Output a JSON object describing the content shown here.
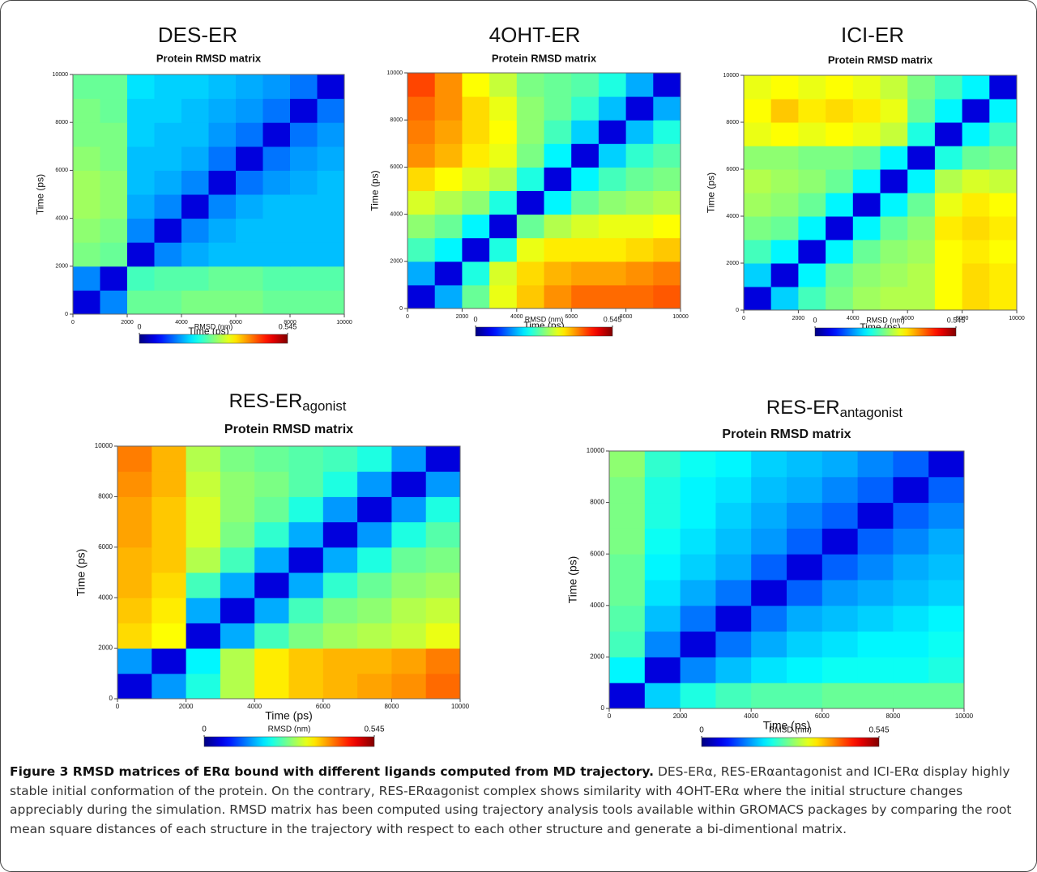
{
  "chart_data": [
    {
      "type": "heatmap",
      "heading": "DES-ER",
      "title": "Protein RMSD matrix",
      "xlabel": "Time (ps)",
      "ylabel": "Time (ps)",
      "xlim": [
        0,
        10000
      ],
      "ylim": [
        0,
        10000
      ],
      "xticks": [
        0,
        2000,
        4000,
        6000,
        8000,
        10000
      ],
      "yticks": [
        0,
        2000,
        4000,
        6000,
        8000,
        10000
      ],
      "xbins": [
        0,
        1000,
        2000,
        3000,
        4000,
        5000,
        6000,
        7000,
        8000,
        9000,
        10000
      ],
      "ybins": [
        0,
        1000,
        2000,
        3000,
        4000,
        5000,
        6000,
        7000,
        8000,
        9000,
        10000
      ],
      "colormap": "jet",
      "clim": [
        0,
        0.545
      ],
      "cticks": [
        0,
        0.545
      ],
      "clabel": "RMSD (nm)",
      "z": [
        [
          0.05,
          0.14,
          0.26,
          0.26,
          0.27,
          0.27,
          0.27,
          0.26,
          0.26,
          0.26
        ],
        [
          0.14,
          0.05,
          0.24,
          0.25,
          0.25,
          0.26,
          0.26,
          0.25,
          0.25,
          0.25
        ],
        [
          0.27,
          0.26,
          0.05,
          0.14,
          0.16,
          0.17,
          0.17,
          0.17,
          0.17,
          0.17
        ],
        [
          0.28,
          0.27,
          0.14,
          0.05,
          0.14,
          0.16,
          0.17,
          0.17,
          0.17,
          0.17
        ],
        [
          0.29,
          0.28,
          0.16,
          0.14,
          0.05,
          0.14,
          0.16,
          0.17,
          0.17,
          0.17
        ],
        [
          0.29,
          0.28,
          0.17,
          0.16,
          0.14,
          0.05,
          0.13,
          0.15,
          0.16,
          0.17
        ],
        [
          0.28,
          0.27,
          0.17,
          0.17,
          0.16,
          0.13,
          0.05,
          0.13,
          0.15,
          0.16
        ],
        [
          0.27,
          0.27,
          0.18,
          0.17,
          0.17,
          0.15,
          0.13,
          0.05,
          0.13,
          0.15
        ],
        [
          0.27,
          0.26,
          0.18,
          0.18,
          0.17,
          0.16,
          0.15,
          0.13,
          0.05,
          0.13
        ],
        [
          0.26,
          0.26,
          0.19,
          0.18,
          0.18,
          0.17,
          0.16,
          0.15,
          0.13,
          0.05
        ]
      ]
    },
    {
      "type": "heatmap",
      "heading": "4OHT-ER",
      "title": "Protein RMSD matrix",
      "xlabel": "Time (ps)",
      "ylabel": "Time (ps)",
      "xlim": [
        0,
        10000
      ],
      "ylim": [
        0,
        10000
      ],
      "xticks": [
        0,
        2000,
        4000,
        6000,
        8000,
        10000
      ],
      "yticks": [
        0,
        2000,
        4000,
        6000,
        8000,
        10000
      ],
      "xbins": [
        0,
        1000,
        2000,
        3000,
        4000,
        5000,
        6000,
        7000,
        8000,
        9000,
        10000
      ],
      "ybins": [
        0,
        1000,
        2000,
        3000,
        4000,
        5000,
        6000,
        7000,
        8000,
        9000,
        10000
      ],
      "colormap": "jet",
      "clim": [
        0,
        0.545
      ],
      "cticks": [
        0,
        0.545
      ],
      "clabel": "RMSD (nm)",
      "z": [
        [
          0.05,
          0.16,
          0.26,
          0.33,
          0.37,
          0.4,
          0.42,
          0.42,
          0.42,
          0.43
        ],
        [
          0.16,
          0.05,
          0.22,
          0.32,
          0.36,
          0.38,
          0.39,
          0.39,
          0.4,
          0.41
        ],
        [
          0.24,
          0.2,
          0.05,
          0.22,
          0.33,
          0.35,
          0.35,
          0.35,
          0.36,
          0.37
        ],
        [
          0.28,
          0.26,
          0.2,
          0.05,
          0.26,
          0.3,
          0.32,
          0.33,
          0.33,
          0.34
        ],
        [
          0.32,
          0.3,
          0.28,
          0.22,
          0.05,
          0.2,
          0.26,
          0.28,
          0.29,
          0.3
        ],
        [
          0.36,
          0.34,
          0.32,
          0.3,
          0.22,
          0.05,
          0.2,
          0.24,
          0.26,
          0.27
        ],
        [
          0.4,
          0.38,
          0.35,
          0.33,
          0.27,
          0.2,
          0.05,
          0.18,
          0.23,
          0.25
        ],
        [
          0.41,
          0.39,
          0.36,
          0.34,
          0.28,
          0.24,
          0.18,
          0.05,
          0.17,
          0.22
        ],
        [
          0.42,
          0.4,
          0.36,
          0.33,
          0.28,
          0.26,
          0.23,
          0.17,
          0.05,
          0.16
        ],
        [
          0.44,
          0.4,
          0.34,
          0.31,
          0.27,
          0.26,
          0.25,
          0.22,
          0.16,
          0.05
        ]
      ]
    },
    {
      "type": "heatmap",
      "heading": "ICI-ER",
      "title": "Protein RMSD matrix",
      "xlabel": "Time (ps)",
      "ylabel": "Time (ps)",
      "xlim": [
        0,
        10000
      ],
      "ylim": [
        0,
        10000
      ],
      "xticks": [
        0,
        2000,
        4000,
        6000,
        8000,
        10000
      ],
      "yticks": [
        0,
        2000,
        4000,
        6000,
        8000,
        10000
      ],
      "xbins": [
        0,
        1000,
        2000,
        3000,
        4000,
        5000,
        6000,
        7000,
        8000,
        9000,
        10000
      ],
      "ybins": [
        0,
        1000,
        2000,
        3000,
        4000,
        5000,
        6000,
        7000,
        8000,
        9000,
        10000
      ],
      "colormap": "jet",
      "clim": [
        0,
        0.545
      ],
      "cticks": [
        0,
        0.545
      ],
      "clabel": "RMSD (nm)",
      "z": [
        [
          0.05,
          0.18,
          0.24,
          0.27,
          0.29,
          0.3,
          0.3,
          0.34,
          0.36,
          0.35
        ],
        [
          0.18,
          0.05,
          0.2,
          0.26,
          0.28,
          0.29,
          0.3,
          0.34,
          0.36,
          0.35
        ],
        [
          0.24,
          0.2,
          0.05,
          0.2,
          0.26,
          0.28,
          0.29,
          0.34,
          0.35,
          0.34
        ],
        [
          0.27,
          0.26,
          0.2,
          0.05,
          0.2,
          0.26,
          0.28,
          0.35,
          0.36,
          0.35
        ],
        [
          0.29,
          0.28,
          0.26,
          0.2,
          0.05,
          0.2,
          0.26,
          0.33,
          0.35,
          0.34
        ],
        [
          0.3,
          0.29,
          0.28,
          0.26,
          0.2,
          0.05,
          0.2,
          0.3,
          0.32,
          0.31
        ],
        [
          0.28,
          0.28,
          0.27,
          0.27,
          0.26,
          0.2,
          0.05,
          0.22,
          0.26,
          0.27
        ],
        [
          0.33,
          0.34,
          0.33,
          0.34,
          0.33,
          0.31,
          0.22,
          0.05,
          0.2,
          0.24
        ],
        [
          0.34,
          0.37,
          0.35,
          0.36,
          0.35,
          0.33,
          0.26,
          0.2,
          0.05,
          0.2
        ],
        [
          0.33,
          0.34,
          0.33,
          0.34,
          0.33,
          0.31,
          0.27,
          0.24,
          0.2,
          0.05
        ]
      ]
    },
    {
      "type": "heatmap",
      "heading": "RES-ER",
      "heading_sub": "agonist",
      "title": "Protein RMSD matrix",
      "xlabel": "Time (ps)",
      "ylabel": "Time (ps)",
      "xlim": [
        0,
        10000
      ],
      "ylim": [
        0,
        10000
      ],
      "xticks": [
        0,
        2000,
        4000,
        6000,
        8000,
        10000
      ],
      "yticks": [
        0,
        2000,
        4000,
        6000,
        8000,
        10000
      ],
      "xbins": [
        0,
        1000,
        2000,
        3000,
        4000,
        5000,
        6000,
        7000,
        8000,
        9000,
        10000
      ],
      "ybins": [
        0,
        1000,
        2000,
        3000,
        4000,
        5000,
        6000,
        7000,
        8000,
        9000,
        10000
      ],
      "colormap": "jet",
      "clim": [
        0,
        0.545
      ],
      "cticks": [
        0,
        0.545
      ],
      "clabel": "RMSD (nm)",
      "z": [
        [
          0.05,
          0.15,
          0.22,
          0.3,
          0.35,
          0.37,
          0.38,
          0.39,
          0.4,
          0.42
        ],
        [
          0.15,
          0.05,
          0.2,
          0.3,
          0.35,
          0.37,
          0.38,
          0.38,
          0.39,
          0.41
        ],
        [
          0.36,
          0.34,
          0.05,
          0.16,
          0.24,
          0.27,
          0.29,
          0.3,
          0.31,
          0.33
        ],
        [
          0.37,
          0.35,
          0.16,
          0.05,
          0.16,
          0.24,
          0.27,
          0.28,
          0.3,
          0.31
        ],
        [
          0.38,
          0.36,
          0.24,
          0.16,
          0.05,
          0.16,
          0.23,
          0.26,
          0.28,
          0.29
        ],
        [
          0.38,
          0.37,
          0.3,
          0.24,
          0.16,
          0.05,
          0.16,
          0.22,
          0.26,
          0.27
        ],
        [
          0.39,
          0.37,
          0.32,
          0.27,
          0.23,
          0.16,
          0.05,
          0.15,
          0.22,
          0.25
        ],
        [
          0.39,
          0.37,
          0.32,
          0.28,
          0.26,
          0.22,
          0.15,
          0.05,
          0.15,
          0.22
        ],
        [
          0.4,
          0.38,
          0.31,
          0.28,
          0.27,
          0.25,
          0.22,
          0.15,
          0.05,
          0.15
        ],
        [
          0.41,
          0.38,
          0.3,
          0.27,
          0.26,
          0.25,
          0.24,
          0.22,
          0.15,
          0.05
        ]
      ]
    },
    {
      "type": "heatmap",
      "heading": "RES-ER",
      "heading_sub": "antagonist",
      "title": "Protein RMSD matrix",
      "xlabel": "Time (ps)",
      "ylabel": "Time (ps)",
      "xlim": [
        0,
        10000
      ],
      "ylim": [
        0,
        10000
      ],
      "xticks": [
        0,
        2000,
        4000,
        6000,
        8000,
        10000
      ],
      "yticks": [
        0,
        2000,
        4000,
        6000,
        8000,
        10000
      ],
      "xbins": [
        0,
        1000,
        2000,
        3000,
        4000,
        5000,
        6000,
        7000,
        8000,
        9000,
        10000
      ],
      "ybins": [
        0,
        1000,
        2000,
        3000,
        4000,
        5000,
        6000,
        7000,
        8000,
        9000,
        10000
      ],
      "colormap": "jet",
      "clim": [
        0,
        0.545
      ],
      "cticks": [
        0,
        0.545
      ],
      "clabel": "RMSD (nm)",
      "z": [
        [
          0.05,
          0.18,
          0.22,
          0.24,
          0.25,
          0.25,
          0.26,
          0.26,
          0.26,
          0.26
        ],
        [
          0.2,
          0.05,
          0.14,
          0.17,
          0.19,
          0.2,
          0.21,
          0.21,
          0.21,
          0.22
        ],
        [
          0.24,
          0.14,
          0.05,
          0.13,
          0.16,
          0.18,
          0.19,
          0.2,
          0.2,
          0.21
        ],
        [
          0.25,
          0.17,
          0.13,
          0.05,
          0.13,
          0.16,
          0.17,
          0.18,
          0.19,
          0.2
        ],
        [
          0.26,
          0.19,
          0.16,
          0.13,
          0.05,
          0.12,
          0.15,
          0.16,
          0.17,
          0.18
        ],
        [
          0.26,
          0.2,
          0.18,
          0.16,
          0.12,
          0.05,
          0.12,
          0.14,
          0.16,
          0.17
        ],
        [
          0.27,
          0.21,
          0.19,
          0.17,
          0.15,
          0.12,
          0.05,
          0.12,
          0.14,
          0.16
        ],
        [
          0.27,
          0.22,
          0.2,
          0.18,
          0.16,
          0.14,
          0.12,
          0.05,
          0.12,
          0.14
        ],
        [
          0.27,
          0.22,
          0.2,
          0.19,
          0.17,
          0.16,
          0.14,
          0.12,
          0.05,
          0.12
        ],
        [
          0.28,
          0.23,
          0.21,
          0.2,
          0.18,
          0.17,
          0.16,
          0.14,
          0.12,
          0.05
        ]
      ]
    }
  ],
  "caption": {
    "label": "Figure 3 RMSD matrices of ERα bound with different ligands computed from MD trajectory.",
    "text": "DES-ERα, RES-ERαantagonist and ICI-ERα display highly stable initial conformation of the protein. On the contrary, RES-ERαagonist complex shows similarity with 4OHT-ERα where the initial structure changes appreciably during the simulation. RMSD matrix has been computed using trajectory analysis tools available within GROMACS packages by comparing the root mean square distances of each structure in the trajectory with respect to each other structure and generate a bi-dimentional matrix."
  }
}
